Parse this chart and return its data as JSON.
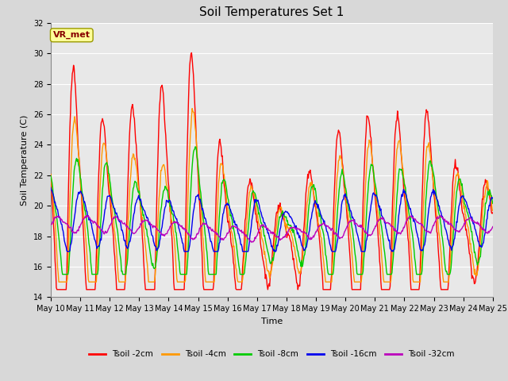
{
  "title": "Soil Temperatures Set 1",
  "xlabel": "Time",
  "ylabel": "Soil Temperature (C)",
  "ylim": [
    14,
    32
  ],
  "yticks": [
    14,
    16,
    18,
    20,
    22,
    24,
    26,
    28,
    30,
    32
  ],
  "background_color": "#e8e8e8",
  "grid_color": "#ffffff",
  "series_colors": {
    "Tsoil -2cm": "#ff0000",
    "Tsoil -4cm": "#ff9900",
    "Tsoil -8cm": "#00cc00",
    "Tsoil -16cm": "#0000ee",
    "Tsoil -32cm": "#bb00bb"
  },
  "annotation_text": "VR_met",
  "annotation_box_color": "#ffff99",
  "annotation_text_color": "#880000",
  "x_tick_labels": [
    "May 10",
    "May 11",
    "May 12",
    "May 13",
    "May 14",
    "May 15",
    "May 16",
    "May 17",
    "May 18",
    "May 19",
    "May 20",
    "May 21",
    "May 22",
    "May 23",
    "May 24",
    "May 25"
  ],
  "n_days": 15
}
